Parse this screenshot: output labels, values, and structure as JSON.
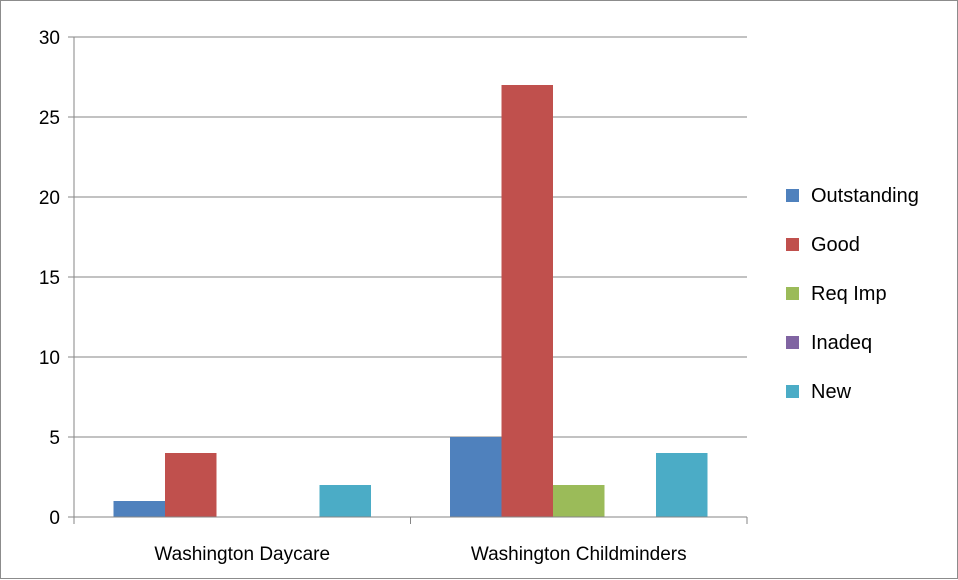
{
  "chart_data": {
    "type": "bar",
    "categories": [
      "Washington Daycare",
      "Washington Childminders"
    ],
    "series": [
      {
        "name": "Outstanding",
        "color": "#4f81bd",
        "values": [
          1,
          5
        ]
      },
      {
        "name": "Good",
        "color": "#c0504d",
        "values": [
          4,
          27
        ]
      },
      {
        "name": "Req Imp",
        "color": "#9bbb59",
        "values": [
          0,
          2
        ]
      },
      {
        "name": "Inadeq",
        "color": "#8064a2",
        "values": [
          0,
          0
        ]
      },
      {
        "name": "New",
        "color": "#4bacc6",
        "values": [
          2,
          4
        ]
      }
    ],
    "ylim": [
      0,
      30
    ],
    "yticks": [
      0,
      5,
      10,
      15,
      20,
      25,
      30
    ],
    "ytick_labels": [
      "0",
      "5",
      "10",
      "15",
      "20",
      "25",
      "30"
    ],
    "grid": true,
    "legend_position": "right",
    "title": "",
    "xlabel": "",
    "ylabel": ""
  }
}
